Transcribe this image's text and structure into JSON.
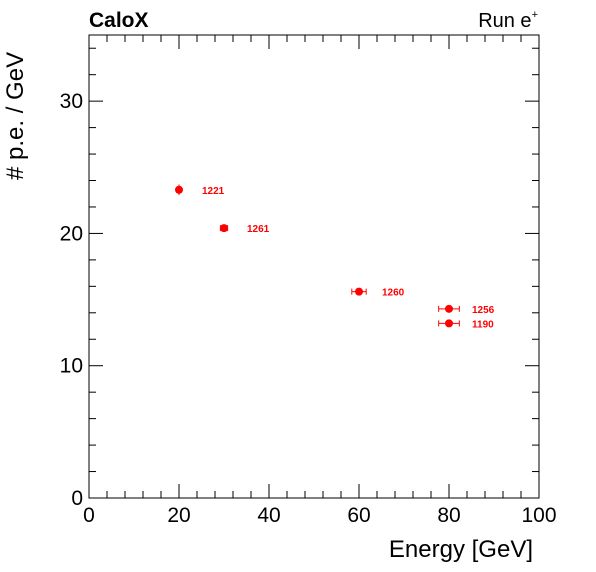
{
  "header": {
    "left": "CaloX",
    "right_base": "Run e",
    "right_sup": "+"
  },
  "chart_data": {
    "type": "scatter",
    "title": "",
    "xlabel": "Energy [GeV]",
    "ylabel": "# p.e. / GeV",
    "xlim": [
      0,
      100
    ],
    "ylim": [
      0,
      35
    ],
    "x_ticks": [
      0,
      20,
      40,
      60,
      80,
      100
    ],
    "y_ticks": [
      0,
      10,
      20,
      30
    ],
    "grid": false,
    "marker_color": "#ff0000",
    "points": [
      {
        "x": 20,
        "y": 23.3,
        "xerr": 0.5,
        "yerr": 0.4,
        "label": "1221"
      },
      {
        "x": 30,
        "y": 20.4,
        "xerr": 0.8,
        "yerr": 0.2,
        "label": "1261"
      },
      {
        "x": 60,
        "y": 15.6,
        "xerr": 1.6,
        "yerr": 0.2,
        "label": "1260"
      },
      {
        "x": 80,
        "y": 14.3,
        "xerr": 2.3,
        "yerr": 0.2,
        "label": "1256"
      },
      {
        "x": 80,
        "y": 13.2,
        "xerr": 2.3,
        "yerr": 0.2,
        "label": "1190"
      }
    ]
  }
}
